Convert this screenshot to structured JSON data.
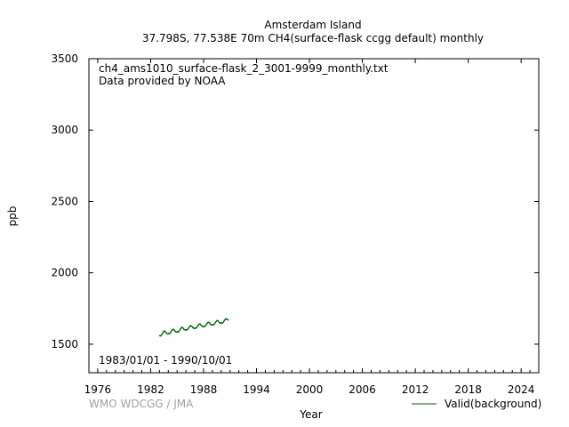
{
  "chart_data": {
    "type": "line",
    "title_line1": "Amsterdam Island",
    "title_line2": "37.798S, 77.538E 70m    CH4(surface-flask ccgg default) monthly",
    "file_name": "ch4_ams1010_surface-flask_2_3001-9999_monthly.txt",
    "provider": "Data provided by NOAA",
    "period": "1983/01/01 - 1990/10/01",
    "xlabel": "Year",
    "ylabel": "ppb",
    "xlim": [
      1975,
      2026
    ],
    "ylim": [
      1300,
      3500
    ],
    "x_ticks": [
      1976,
      1982,
      1988,
      1994,
      2000,
      2006,
      2012,
      2018,
      2024
    ],
    "y_ticks": [
      1500,
      2000,
      2500,
      3000,
      3500
    ],
    "legend_position": "bottom-right",
    "credit": "WMO WDCGG / JMA",
    "series": [
      {
        "name": "Valid(background)",
        "color": "#006400",
        "x": [
          1983.04,
          1983.13,
          1983.21,
          1983.29,
          1983.38,
          1983.46,
          1983.54,
          1983.63,
          1983.71,
          1983.79,
          1983.88,
          1983.96,
          1984.04,
          1984.13,
          1984.21,
          1984.29,
          1984.38,
          1984.46,
          1984.54,
          1984.63,
          1984.71,
          1984.79,
          1984.88,
          1984.96,
          1985.04,
          1985.13,
          1985.21,
          1985.29,
          1985.38,
          1985.46,
          1985.54,
          1985.63,
          1985.71,
          1985.79,
          1985.88,
          1985.96,
          1986.04,
          1986.13,
          1986.21,
          1986.29,
          1986.38,
          1986.46,
          1986.54,
          1986.63,
          1986.71,
          1986.79,
          1986.88,
          1986.96,
          1987.04,
          1987.13,
          1987.21,
          1987.29,
          1987.38,
          1987.46,
          1987.54,
          1987.63,
          1987.71,
          1987.79,
          1987.88,
          1987.96,
          1988.04,
          1988.13,
          1988.21,
          1988.29,
          1988.38,
          1988.46,
          1988.54,
          1988.63,
          1988.71,
          1988.79,
          1988.88,
          1988.96,
          1989.04,
          1989.13,
          1989.21,
          1989.29,
          1989.38,
          1989.46,
          1989.54,
          1989.63,
          1989.71,
          1989.79,
          1989.88,
          1989.96,
          1990.04,
          1990.13,
          1990.21,
          1990.29,
          1990.38,
          1990.46,
          1990.54,
          1990.63,
          1990.71,
          1990.79
        ],
        "y": [
          1560,
          1558,
          1562,
          1570,
          1580,
          1588,
          1592,
          1590,
          1584,
          1578,
          1574,
          1572,
          1576,
          1574,
          1578,
          1586,
          1594,
          1600,
          1604,
          1602,
          1596,
          1590,
          1586,
          1584,
          1588,
          1586,
          1590,
          1598,
          1608,
          1614,
          1618,
          1616,
          1610,
          1604,
          1600,
          1598,
          1602,
          1600,
          1604,
          1612,
          1620,
          1626,
          1630,
          1628,
          1622,
          1616,
          1612,
          1610,
          1614,
          1612,
          1616,
          1624,
          1632,
          1638,
          1642,
          1640,
          1634,
          1628,
          1624,
          1622,
          1626,
          1624,
          1628,
          1636,
          1644,
          1650,
          1654,
          1652,
          1646,
          1640,
          1636,
          1634,
          1638,
          1636,
          1640,
          1648,
          1656,
          1662,
          1666,
          1664,
          1658,
          1652,
          1648,
          1646,
          1650,
          1648,
          1652,
          1660,
          1668,
          1674,
          1678,
          1676,
          1672,
          1670
        ]
      }
    ]
  }
}
